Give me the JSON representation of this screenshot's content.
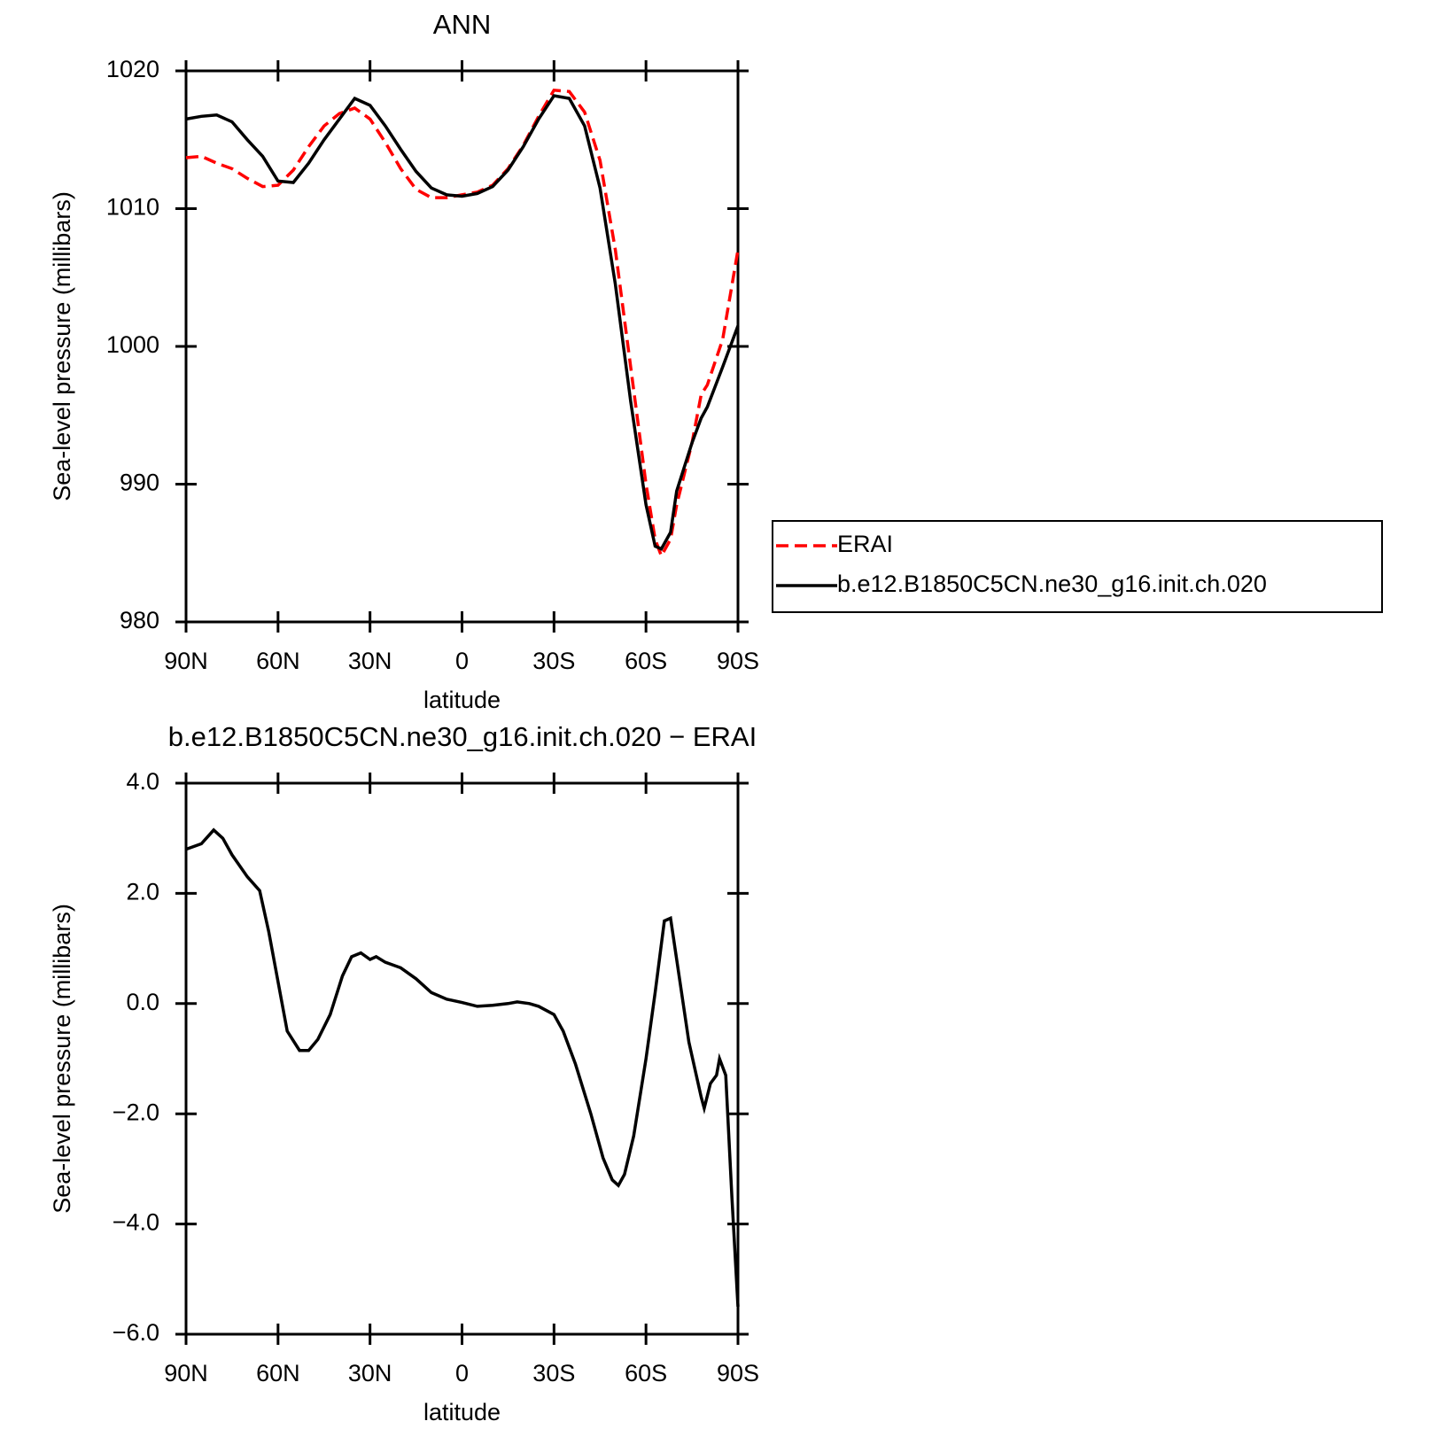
{
  "chart_data": [
    {
      "type": "line",
      "title": "ANN",
      "x_label": "latitude",
      "y_label": "Sea-level pressure (millibars)",
      "x": [
        90,
        85,
        80,
        75,
        70,
        65,
        60,
        55,
        50,
        45,
        40,
        35,
        30,
        25,
        20,
        15,
        10,
        5,
        0,
        -5,
        -10,
        -15,
        -20,
        -25,
        -30,
        -35,
        -40,
        -45,
        -50,
        -55,
        -60,
        -63,
        -65,
        -68,
        -70,
        -75,
        -78,
        -80,
        -85,
        -90
      ],
      "series": [
        {
          "name": "ERAI",
          "color": "#ff0000",
          "dash": true,
          "values": [
            1013.7,
            1013.8,
            1013.3,
            1012.9,
            1012.2,
            1011.6,
            1011.7,
            1012.8,
            1014.5,
            1016.0,
            1016.9,
            1017.3,
            1016.5,
            1014.8,
            1012.9,
            1011.4,
            1010.8,
            1010.8,
            1011.0,
            1011.2,
            1011.7,
            1012.9,
            1014.6,
            1016.7,
            1018.6,
            1018.5,
            1017.0,
            1013.5,
            1007.0,
            998.5,
            990.0,
            986.0,
            984.8,
            986.0,
            988.5,
            993.0,
            996.5,
            997.2,
            1000.5,
            1007.0
          ]
        },
        {
          "name": "b.e12.B1850C5CN.ne30_g16.init.ch.020",
          "color": "#000000",
          "dash": false,
          "values": [
            1016.5,
            1016.7,
            1016.8,
            1016.3,
            1015.0,
            1013.8,
            1012.0,
            1011.9,
            1013.3,
            1015.0,
            1016.5,
            1018.0,
            1017.5,
            1016.0,
            1014.3,
            1012.7,
            1011.5,
            1011.0,
            1010.9,
            1011.1,
            1011.6,
            1012.8,
            1014.5,
            1016.5,
            1018.2,
            1018.0,
            1016.0,
            1011.5,
            1004.5,
            996.0,
            988.5,
            985.5,
            985.3,
            986.5,
            989.5,
            993.0,
            994.8,
            995.6,
            998.5,
            1001.5
          ]
        }
      ],
      "xlim": [
        90,
        -90
      ],
      "xticks": [
        {
          "value": 90,
          "label": "90N"
        },
        {
          "value": 60,
          "label": "60N"
        },
        {
          "value": 30,
          "label": "30N"
        },
        0,
        {
          "value": -30,
          "label": "30S"
        },
        {
          "value": -60,
          "label": "60S"
        },
        {
          "value": -90,
          "label": "90S"
        }
      ],
      "ylim": [
        980,
        1020
      ],
      "yticks": [
        980,
        990,
        1000,
        1010,
        1020
      ]
    },
    {
      "type": "line",
      "title": "b.e12.B1850C5CN.ne30_g16.init.ch.020 − ERAI",
      "x_label": "latitude",
      "y_label": "Sea-level pressure (millibars)",
      "x": [
        90,
        85,
        81,
        78,
        75,
        70,
        66,
        63,
        60,
        57,
        53,
        50,
        47,
        43,
        39,
        36,
        33,
        30,
        28,
        25,
        20,
        15,
        10,
        5,
        0,
        -5,
        -10,
        -15,
        -18,
        -22,
        -25,
        -30,
        -33,
        -37,
        -42,
        -46,
        -49,
        -51,
        -53,
        -56,
        -60,
        -63,
        -66,
        -68,
        -70,
        -74,
        -78,
        -79,
        -81,
        -83,
        -84,
        -86,
        -88,
        -90
      ],
      "values": [
        2.8,
        2.9,
        3.15,
        3.0,
        2.7,
        2.3,
        2.05,
        1.3,
        0.4,
        -0.5,
        -0.85,
        -0.85,
        -0.65,
        -0.2,
        0.5,
        0.85,
        0.92,
        0.8,
        0.85,
        0.75,
        0.65,
        0.45,
        0.2,
        0.08,
        0.02,
        -0.05,
        -0.03,
        0.0,
        0.03,
        0.0,
        -0.05,
        -0.2,
        -0.5,
        -1.1,
        -2.0,
        -2.8,
        -3.2,
        -3.3,
        -3.1,
        -2.4,
        -1.0,
        0.2,
        1.5,
        1.55,
        0.8,
        -0.7,
        -1.7,
        -1.9,
        -1.45,
        -1.3,
        -1.0,
        -1.3,
        -3.5,
        -5.5
      ],
      "color": "#000000",
      "xlim": [
        90,
        -90
      ],
      "xticks": [
        {
          "value": 90,
          "label": "90N"
        },
        {
          "value": 60,
          "label": "60N"
        },
        {
          "value": 30,
          "label": "30N"
        },
        0,
        {
          "value": -30,
          "label": "30S"
        },
        {
          "value": -60,
          "label": "60S"
        },
        {
          "value": -90,
          "label": "90S"
        }
      ],
      "ylim": [
        -6,
        4
      ],
      "yticks": [
        {
          "value": -6,
          "label": "−6.0"
        },
        {
          "value": -4,
          "label": "−4.0"
        },
        {
          "value": -2,
          "label": "−2.0"
        },
        {
          "value": 0,
          "label": "0.0"
        },
        {
          "value": 2,
          "label": "2.0"
        },
        {
          "value": 4,
          "label": "4.0"
        }
      ]
    }
  ]
}
